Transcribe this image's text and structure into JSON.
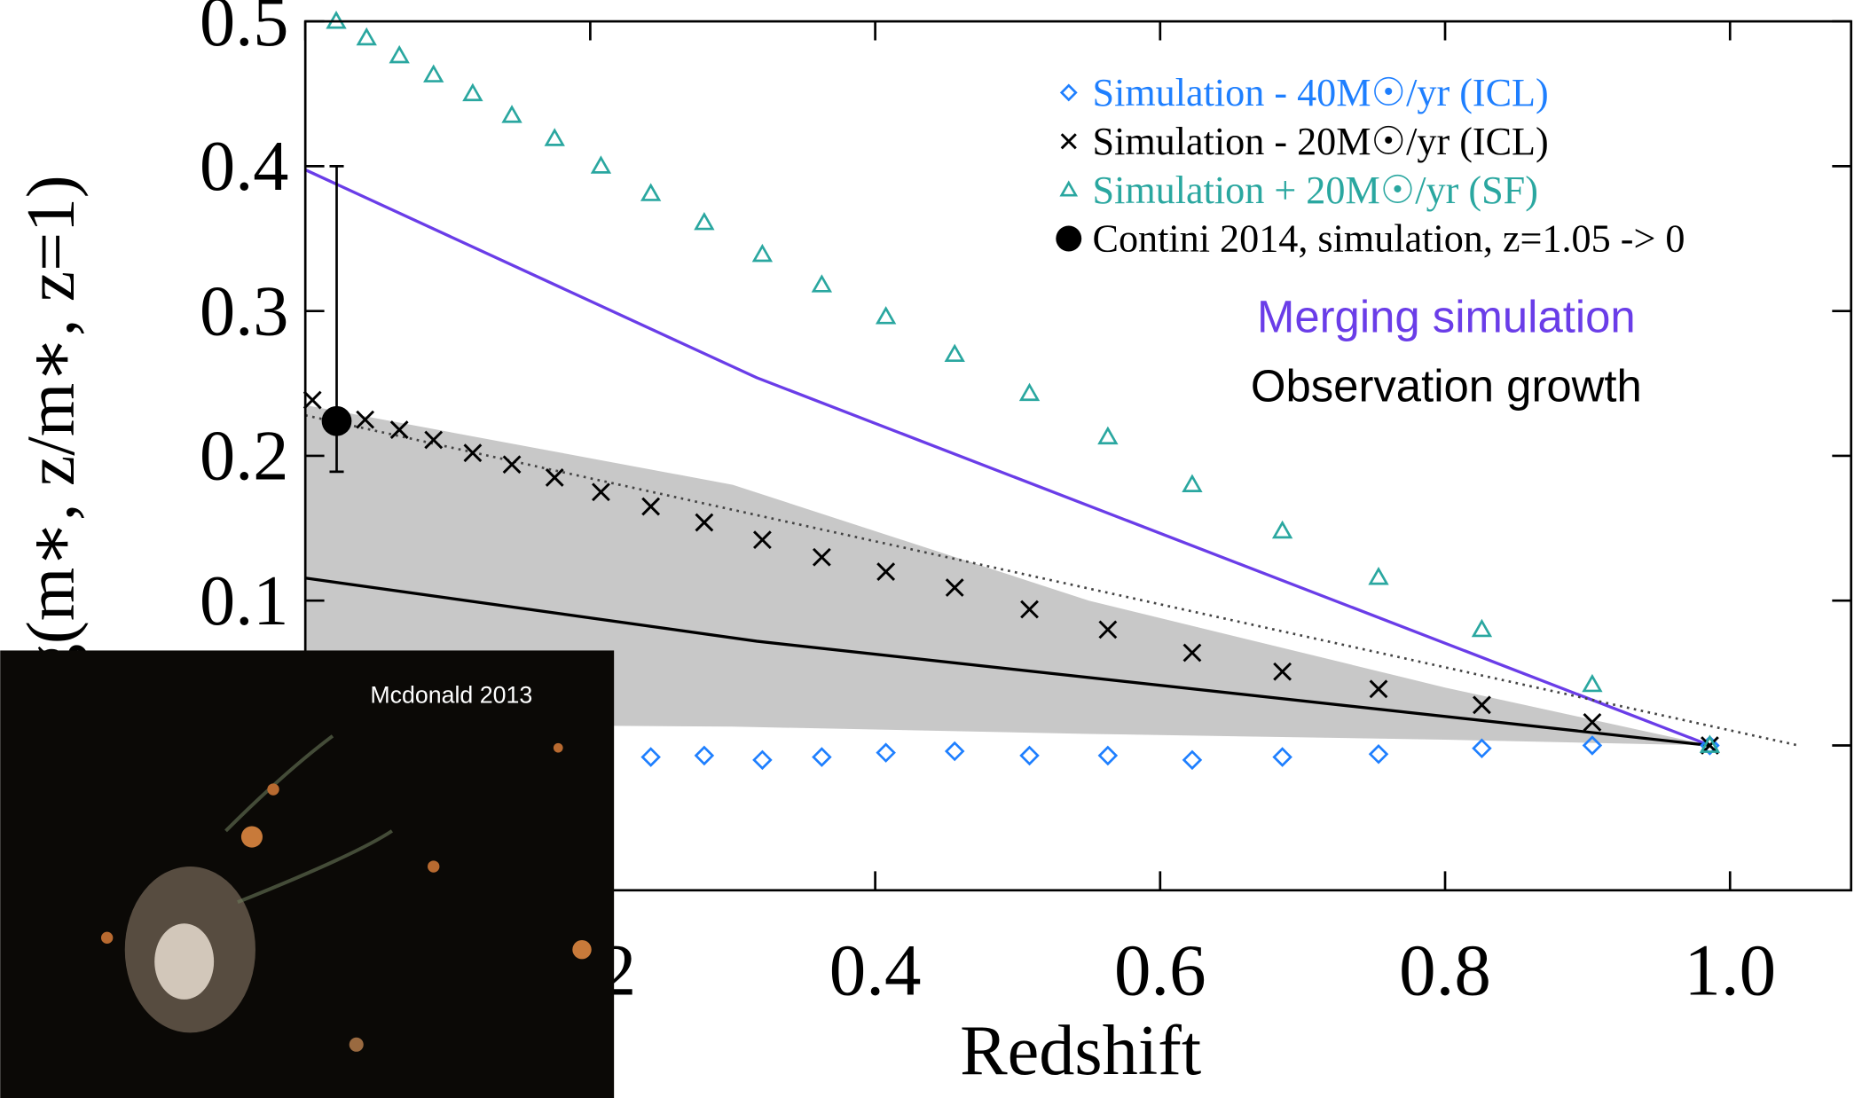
{
  "chart_data": {
    "type": "scatter",
    "x_label": "Redshift",
    "y_label": "log(m∗, z/m∗, z=1)",
    "xlim": [
      0,
      1.085
    ],
    "ylim": [
      -0.1,
      0.5
    ],
    "xticks": [
      0,
      0.2,
      0.4,
      0.6,
      0.8,
      {
        "value": 1,
        "label": "1.0"
      }
    ],
    "yticks": [
      {
        "value": 0,
        "label": "0.0"
      },
      0.1,
      0.2,
      0.3,
      0.4,
      0.5
    ],
    "legend": "upper right",
    "series": [
      {
        "name": "Simulation - 40M☉/yr (ICL)",
        "color": "#1e7fff",
        "marker": "diamond",
        "x": [
          0.2425,
          0.28,
          0.3208,
          0.3625,
          0.4075,
          0.4558,
          0.5083,
          0.5633,
          0.6225,
          0.6858,
          0.7533,
          0.8258,
          0.9033,
          0.9858
        ],
        "values": [
          -0.008,
          -0.007,
          -0.01,
          -0.008,
          -0.005,
          -0.004,
          -0.007,
          -0.007,
          -0.01,
          -0.008,
          -0.006,
          -0.002,
          0,
          0
        ]
      },
      {
        "name": "Simulation - 20M☉/yr (ICL)",
        "color": "#000000",
        "marker": "x",
        "x": [
          0.005,
          0.042,
          0.066,
          0.09,
          0.1175,
          0.145,
          0.175,
          0.2075,
          0.2425,
          0.28,
          0.3208,
          0.3625,
          0.4075,
          0.4558,
          0.5083,
          0.5633,
          0.6225,
          0.6858,
          0.7533,
          0.8258,
          0.9033,
          0.9858
        ],
        "values": [
          0.2385,
          0.225,
          0.218,
          0.211,
          0.202,
          0.194,
          0.185,
          0.175,
          0.165,
          0.154,
          0.142,
          0.13,
          0.12,
          0.109,
          0.094,
          0.08,
          0.064,
          0.051,
          0.039,
          0.028,
          0.016,
          0
        ]
      },
      {
        "name": "Simulation + 20M☉/yr (SF)",
        "color": "#2aa7a0",
        "marker": "triangle",
        "x": [
          0.0217,
          0.043,
          0.066,
          0.09,
          0.1175,
          0.145,
          0.175,
          0.2075,
          0.2425,
          0.28,
          0.3208,
          0.3625,
          0.4075,
          0.4558,
          0.5083,
          0.5633,
          0.6225,
          0.6858,
          0.7533,
          0.8258,
          0.9033,
          0.9858
        ],
        "values": [
          0.5,
          0.4885,
          0.4762,
          0.463,
          0.45,
          0.435,
          0.419,
          0.4,
          0.381,
          0.361,
          0.339,
          0.318,
          0.296,
          0.27,
          0.243,
          0.213,
          0.18,
          0.148,
          0.116,
          0.08,
          0.042,
          0
        ]
      },
      {
        "name": "Contini 2014, simulation, z=1.05 -> 0",
        "color": "#000000",
        "marker": "circle",
        "x": [
          0.022
        ],
        "values": [
          0.224
        ],
        "error_low": [
          0.035
        ],
        "error_high": [
          0.176
        ]
      }
    ],
    "lines": [
      {
        "color": "#6a3de8",
        "style": "solid",
        "x": [
          0,
          0.3167,
          0.986
        ],
        "values": [
          0.3975,
          0.254,
          0
        ]
      },
      {
        "color": "#000000",
        "style": "solid",
        "x": [
          0,
          0.3167,
          0.986
        ],
        "values": [
          0.1156,
          0.072,
          0
        ]
      },
      {
        "color": "#444444",
        "style": "dotted",
        "x": [
          0,
          1.048
        ],
        "values": [
          0.228,
          0
        ]
      }
    ],
    "band": {
      "color": "#c8c8c8",
      "x": [
        0,
        0.3,
        0.55,
        0.8,
        0.986
      ],
      "upper": [
        0.235,
        0.18,
        0.1,
        0.04,
        0
      ],
      "lower": [
        0.015,
        0.013,
        0.008,
        0.004,
        0
      ]
    },
    "annotations": [
      {
        "text": "Merging simulation",
        "color": "#6a3de8"
      },
      {
        "text": "Observation growth",
        "color": "#000000"
      }
    ],
    "image_caption": "Mcdonald 2013"
  }
}
